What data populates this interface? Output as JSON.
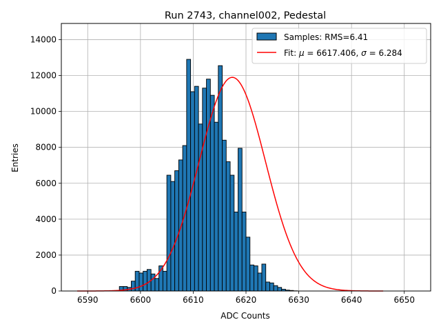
{
  "chart_data": {
    "type": "bar",
    "title": "Run 2743, channel002, Pedestal",
    "xlabel": "ADC Counts",
    "ylabel": "Entries",
    "xlim": [
      6585,
      6655
    ],
    "ylim": [
      0,
      14900
    ],
    "xticks": [
      6590,
      6600,
      6610,
      6620,
      6630,
      6640,
      6650
    ],
    "yticks": [
      0,
      2000,
      4000,
      6000,
      8000,
      10000,
      12000,
      14000
    ],
    "grid": true,
    "legend_position": "upper right",
    "histogram": {
      "name": "Samples: RMS=6.41",
      "color": "#1f77b4",
      "edgecolor": "#000000",
      "bin_width": 0.75,
      "bin_start": 6596.0,
      "counts": [
        250,
        250,
        200,
        550,
        1100,
        1000,
        1100,
        1200,
        950,
        700,
        1400,
        1100,
        6450,
        6100,
        6700,
        7300,
        8100,
        12900,
        11100,
        11400,
        9300,
        11300,
        11800,
        10900,
        9400,
        12550,
        8400,
        7200,
        6450,
        4400,
        7950,
        4400,
        3000,
        1450,
        1400,
        1000,
        1500,
        500,
        450,
        300,
        200,
        100,
        50,
        30,
        10
      ]
    },
    "fit": {
      "label": "Fit: $\\mu$ = 6617.406, $\\sigma$ = 6.284",
      "label_parts": [
        "Fit: ",
        "μ",
        " = 6617.406, ",
        "σ",
        " = 6.284"
      ],
      "color": "#ff0000",
      "mu": 6617.406,
      "sigma": 6.284,
      "amplitude": 11900,
      "x_range": [
        6588,
        6646
      ]
    }
  }
}
